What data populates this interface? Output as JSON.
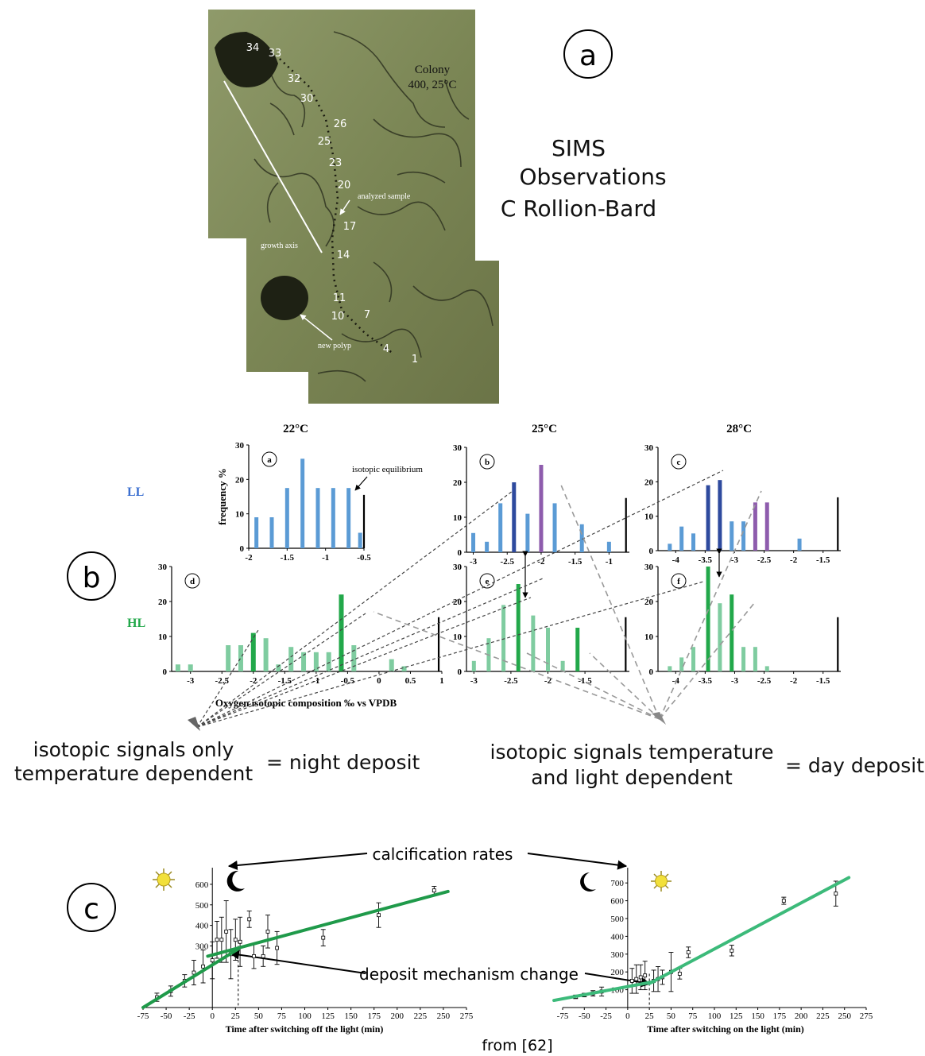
{
  "colors": {
    "blue": "#5b9bd5",
    "dark_blue": "#2e4a9e",
    "purple": "#8e5cad",
    "light_green": "#7fcca0",
    "dark_green": "#22a84a",
    "line_dark_green": "#1f9a4a",
    "line_teal": "#3cba7a"
  },
  "panel_a": {
    "label": "a",
    "colony": "Colony",
    "colony_sub": "400, 25°C",
    "spot_labels": [
      "34",
      "33",
      "32",
      "30",
      "26",
      "25",
      "23",
      "20",
      "17",
      "14",
      "11",
      "10",
      "7",
      "4",
      "1"
    ],
    "annot_growth": "growth axis",
    "annot_sample": "analyzed sample",
    "annot_polyp": "new polyp"
  },
  "sims": {
    "line1": "SIMS",
    "line2": "Observations",
    "line3": "C Rollion-Bard"
  },
  "panel_b": {
    "label": "b",
    "row_LL": "LL",
    "row_HL": "HL",
    "temps": [
      "22°C",
      "25°C",
      "28°C"
    ],
    "ylabel": "frequency %",
    "xlabel": "Oxygen isotopic composition ‰ vs VPDB",
    "equilibrium": "isotopic equilibrium",
    "night_line1": "isotopic signals only",
    "night_line2": "temperature dependent",
    "night_eq": "= night deposit",
    "day_line1": "isotopic signals temperature",
    "day_line2": "and light  dependent",
    "day_eq": "= day deposit"
  },
  "panel_c": {
    "label": "c",
    "calcification": "calcification rates",
    "mechanism": "deposit mechanism change",
    "xlabel_left": "Time after switching off the light (min)",
    "xlabel_right": "Time after switching on the light (min)",
    "source": "from [62]"
  },
  "chart_data": [
    {
      "type": "bar",
      "panel": "a",
      "row": "LL",
      "temperature": "22°C",
      "xlim": [
        -2,
        -0.5
      ],
      "ylim": [
        0,
        30
      ],
      "xticks": [
        -2,
        -1.5,
        -1,
        -0.5
      ],
      "yticks": [
        0,
        10,
        20,
        30
      ],
      "equilibrium": -0.5,
      "x": [
        -1.9,
        -1.7,
        -1.5,
        -1.3,
        -1.1,
        -0.9,
        -0.7,
        -0.55
      ],
      "values": [
        9,
        9,
        17.5,
        26,
        17.5,
        17.5,
        17.5,
        4.5
      ],
      "colors": [
        "blue",
        "blue",
        "blue",
        "blue",
        "blue",
        "blue",
        "blue",
        "blue"
      ]
    },
    {
      "type": "bar",
      "panel": "b",
      "row": "LL",
      "temperature": "25°C",
      "xlim": [
        -3.1,
        -0.7
      ],
      "ylim": [
        0,
        30
      ],
      "xticks": [
        -3,
        -2.5,
        -2,
        -1.5,
        -1
      ],
      "yticks": [
        0,
        10,
        20,
        30
      ],
      "equilibrium": -0.75,
      "x": [
        -3,
        -2.8,
        -2.6,
        -2.4,
        -2.2,
        -2,
        -1.8,
        -1.6,
        -1.4,
        -1.2,
        -1
      ],
      "values": [
        5.5,
        3,
        14,
        20,
        11,
        25,
        14,
        0,
        8,
        0,
        3
      ],
      "colors": [
        "blue",
        "blue",
        "blue",
        "dark_blue",
        "blue",
        "purple",
        "blue",
        "blue",
        "blue",
        "blue",
        "blue"
      ]
    },
    {
      "type": "bar",
      "panel": "c",
      "row": "LL",
      "temperature": "28°C",
      "xlim": [
        -4.3,
        -1.2
      ],
      "ylim": [
        0,
        30
      ],
      "xticks": [
        -4,
        -3.5,
        -3,
        -2.5,
        -2,
        -1.5
      ],
      "yticks": [
        0,
        10,
        20,
        30
      ],
      "equilibrium": -1.25,
      "x": [
        -4.1,
        -3.9,
        -3.7,
        -3.45,
        -3.25,
        -3.05,
        -2.85,
        -2.65,
        -2.45,
        -2.25,
        -1.9
      ],
      "values": [
        2,
        7,
        5,
        19,
        20.5,
        8.5,
        8.5,
        14,
        14,
        0,
        3.5
      ],
      "colors": [
        "blue",
        "blue",
        "blue",
        "dark_blue",
        "dark_blue",
        "blue",
        "blue",
        "purple",
        "purple",
        "blue",
        "blue"
      ]
    },
    {
      "type": "bar",
      "panel": "d",
      "row": "HL",
      "temperature": "22°C",
      "xlim": [
        -3.3,
        1
      ],
      "ylim": [
        0,
        30
      ],
      "xticks": [
        -3,
        -2.5,
        -2,
        -1.5,
        -1,
        -0.5,
        0,
        0.5,
        1
      ],
      "yticks": [
        0,
        10,
        20,
        30
      ],
      "equilibrium": 0.95,
      "x": [
        -3.2,
        -3,
        -2.6,
        -2.4,
        -2.2,
        -2,
        -1.8,
        -1.6,
        -1.4,
        -1.2,
        -1,
        -0.8,
        -0.6,
        -0.4,
        -0.2,
        0,
        0.2,
        0.4,
        0.6,
        0.8
      ],
      "values": [
        2,
        2,
        0,
        7.5,
        7.5,
        11,
        9.5,
        2,
        7,
        5.5,
        5.5,
        5.5,
        22,
        7.5,
        0,
        0,
        3.5,
        1.5,
        0,
        0
      ],
      "colors": [
        "light_green",
        "light_green",
        "light_green",
        "light_green",
        "light_green",
        "dark_green",
        "light_green",
        "light_green",
        "light_green",
        "light_green",
        "light_green",
        "light_green",
        "dark_green",
        "light_green",
        "light_green",
        "light_green",
        "light_green",
        "light_green",
        "light_green",
        "light_green"
      ]
    },
    {
      "type": "bar",
      "panel": "e",
      "row": "HL",
      "temperature": "25°C",
      "xlim": [
        -3.1,
        -0.9
      ],
      "ylim": [
        0,
        30
      ],
      "xticks": [
        -3,
        -2.5,
        -2,
        -1.5
      ],
      "yticks": [
        0,
        10,
        20,
        30
      ],
      "equilibrium": -0.95,
      "x": [
        -3,
        -2.8,
        -2.6,
        -2.4,
        -2.2,
        -2,
        -1.8,
        -1.6,
        -1.4,
        -1.2
      ],
      "values": [
        3,
        9.5,
        19,
        25,
        16,
        12.5,
        3,
        12.5,
        0,
        0
      ],
      "colors": [
        "light_green",
        "light_green",
        "light_green",
        "dark_green",
        "light_green",
        "light_green",
        "light_green",
        "dark_green",
        "light_green",
        "light_green"
      ]
    },
    {
      "type": "bar",
      "panel": "f",
      "row": "HL",
      "temperature": "28°C",
      "xlim": [
        -4.3,
        -1.2
      ],
      "ylim": [
        0,
        30
      ],
      "xticks": [
        -4,
        -3.5,
        -3,
        -2.5,
        -2,
        -1.5
      ],
      "yticks": [
        0,
        10,
        20,
        30
      ],
      "equilibrium": -1.25,
      "x": [
        -4.1,
        -3.9,
        -3.7,
        -3.45,
        -3.25,
        -3.05,
        -2.85,
        -2.65,
        -2.45,
        -2.25
      ],
      "values": [
        1.5,
        4,
        7,
        30,
        19.5,
        22,
        7,
        7,
        1.5,
        0
      ],
      "colors": [
        "light_green",
        "light_green",
        "light_green",
        "dark_green",
        "light_green",
        "dark_green",
        "light_green",
        "light_green",
        "light_green",
        "light_green"
      ]
    },
    {
      "type": "scatter",
      "panel": "c-left",
      "xlim": [
        -75,
        275
      ],
      "ylim": [
        0,
        650
      ],
      "xticks": [
        -75,
        -50,
        -25,
        0,
        25,
        50,
        75,
        100,
        125,
        150,
        175,
        200,
        225,
        250,
        275
      ],
      "yticks": [
        300,
        400,
        500,
        600
      ],
      "break_x": 28,
      "points": [
        {
          "x": -60,
          "y": 50,
          "e": 20
        },
        {
          "x": -45,
          "y": 80,
          "e": 25
        },
        {
          "x": -30,
          "y": 130,
          "e": 30
        },
        {
          "x": -20,
          "y": 170,
          "e": 60
        },
        {
          "x": -10,
          "y": 200,
          "e": 80
        },
        {
          "x": 0,
          "y": 230,
          "e": 90
        },
        {
          "x": 5,
          "y": 330,
          "e": 90
        },
        {
          "x": 10,
          "y": 330,
          "e": 110
        },
        {
          "x": 15,
          "y": 370,
          "e": 150
        },
        {
          "x": 20,
          "y": 260,
          "e": 120
        },
        {
          "x": 25,
          "y": 330,
          "e": 100
        },
        {
          "x": 30,
          "y": 320,
          "e": 120
        },
        {
          "x": 40,
          "y": 430,
          "e": 40
        },
        {
          "x": 45,
          "y": 250,
          "e": 60
        },
        {
          "x": 55,
          "y": 250,
          "e": 50
        },
        {
          "x": 60,
          "y": 370,
          "e": 80
        },
        {
          "x": 70,
          "y": 290,
          "e": 80
        },
        {
          "x": 120,
          "y": 340,
          "e": 40
        },
        {
          "x": 180,
          "y": 450,
          "e": 60
        },
        {
          "x": 240,
          "y": 570,
          "e": 20
        }
      ],
      "lines": [
        {
          "x": [
            -75,
            28
          ],
          "y": [
            0,
            285
          ]
        },
        {
          "x": [
            -5,
            255
          ],
          "y": [
            250,
            565
          ]
        }
      ]
    },
    {
      "type": "scatter",
      "panel": "c-right",
      "xlim": [
        -75,
        275
      ],
      "ylim": [
        0,
        750
      ],
      "xticks": [
        -75,
        -50,
        -25,
        0,
        25,
        50,
        75,
        100,
        125,
        150,
        175,
        200,
        225,
        250,
        275
      ],
      "yticks": [
        100,
        200,
        300,
        400,
        500,
        600,
        700
      ],
      "break_x": 25,
      "points": [
        {
          "x": -60,
          "y": 60,
          "e": 10
        },
        {
          "x": -50,
          "y": 70,
          "e": 10
        },
        {
          "x": -40,
          "y": 80,
          "e": 15
        },
        {
          "x": -30,
          "y": 90,
          "e": 25
        },
        {
          "x": 5,
          "y": 150,
          "e": 70
        },
        {
          "x": 10,
          "y": 160,
          "e": 80
        },
        {
          "x": 15,
          "y": 170,
          "e": 70
        },
        {
          "x": 20,
          "y": 180,
          "e": 80
        },
        {
          "x": 30,
          "y": 150,
          "e": 60
        },
        {
          "x": 35,
          "y": 160,
          "e": 70
        },
        {
          "x": 40,
          "y": 170,
          "e": 40
        },
        {
          "x": 50,
          "y": 200,
          "e": 110
        },
        {
          "x": 60,
          "y": 190,
          "e": 30
        },
        {
          "x": 70,
          "y": 310,
          "e": 30
        },
        {
          "x": 120,
          "y": 320,
          "e": 30
        },
        {
          "x": 180,
          "y": 600,
          "e": 20
        },
        {
          "x": 240,
          "y": 640,
          "e": 70
        }
      ],
      "lines": [
        {
          "x": [
            -85,
            30
          ],
          "y": [
            40,
            145
          ]
        },
        {
          "x": [
            25,
            255
          ],
          "y": [
            135,
            730
          ]
        }
      ]
    }
  ]
}
